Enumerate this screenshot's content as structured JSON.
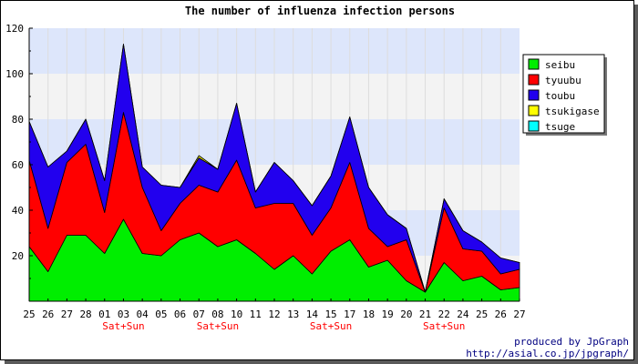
{
  "chart_data": {
    "type": "area",
    "stacked": true,
    "title": "The number of influenza infection persons",
    "xlabel": "",
    "ylabel": "",
    "ylim": [
      0,
      120
    ],
    "yticks": [
      20,
      40,
      60,
      80,
      100,
      120
    ],
    "categories": [
      "25",
      "26",
      "27",
      "28",
      "01",
      "03",
      "04",
      "05",
      "06",
      "07",
      "08",
      "10",
      "11",
      "12",
      "13",
      "14",
      "15",
      "17",
      "18",
      "19",
      "20",
      "21",
      "22",
      "24",
      "25",
      "26",
      "27"
    ],
    "sublabels": [
      "",
      "",
      "",
      "",
      "",
      "Sat+Sun",
      "",
      "",
      "",
      "",
      "Sat+Sun",
      "",
      "",
      "",
      "",
      "",
      "Sat+Sun",
      "",
      "",
      "",
      "",
      "",
      "Sat+Sun",
      "",
      "",
      "",
      ""
    ],
    "grid": true,
    "legend_position": "right",
    "series": [
      {
        "name": "seibu",
        "color": "#00ee00",
        "values": [
          24,
          13,
          29,
          29,
          21,
          36,
          21,
          20,
          27,
          30,
          24,
          27,
          21,
          14,
          20,
          12,
          22,
          27,
          15,
          18,
          9,
          4,
          17,
          9,
          11,
          5,
          6
        ]
      },
      {
        "name": "tyuubu",
        "color": "#ff0000",
        "values": [
          38,
          19,
          32,
          40,
          18,
          47,
          29,
          11,
          16,
          21,
          24,
          35,
          20,
          29,
          23,
          17,
          19,
          34,
          17,
          6,
          18,
          0,
          24,
          14,
          11,
          7,
          8
        ]
      },
      {
        "name": "toubu",
        "color": "#2200ee",
        "values": [
          17,
          27,
          5,
          11,
          14,
          30,
          9,
          20,
          7,
          12,
          10,
          25,
          7,
          18,
          10,
          13,
          14,
          20,
          18,
          14,
          5,
          0,
          4,
          8,
          4,
          7,
          3
        ]
      },
      {
        "name": "tsukigase",
        "color": "#ffff00",
        "values": [
          0,
          0,
          0,
          0,
          0,
          0,
          0,
          0,
          0,
          1,
          0,
          0,
          0,
          0,
          0,
          0,
          0,
          0,
          0,
          0,
          0,
          0,
          0,
          0,
          0,
          0,
          0
        ]
      },
      {
        "name": "tsuge",
        "color": "#00ffff",
        "values": [
          0,
          0,
          0,
          0,
          0,
          0,
          0,
          0,
          0,
          0,
          0,
          0,
          0,
          0,
          0,
          0,
          0,
          0,
          0,
          0,
          0,
          0,
          0,
          0,
          0,
          0,
          0
        ]
      }
    ]
  },
  "credits": {
    "line1": "produced by JpGraph",
    "line2": "http://asial.co.jp/jpgraph/"
  },
  "colors": {
    "band_light": "#f3f3f3",
    "band_blue": "#dde6fb"
  }
}
